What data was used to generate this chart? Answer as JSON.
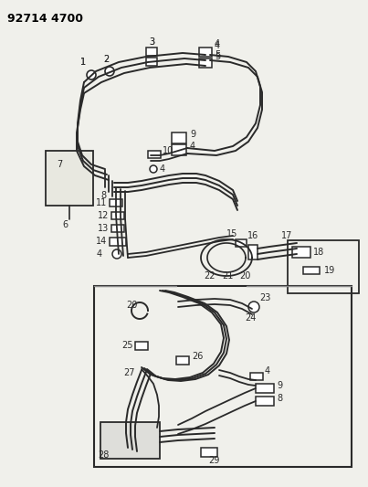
{
  "title": "92714 4700",
  "bg_color": "#f0f0eb",
  "line_color": "#2a2a2a",
  "box_color": "#2a2a2a",
  "fig_width": 4.03,
  "fig_height": 5.33,
  "dpi": 100
}
